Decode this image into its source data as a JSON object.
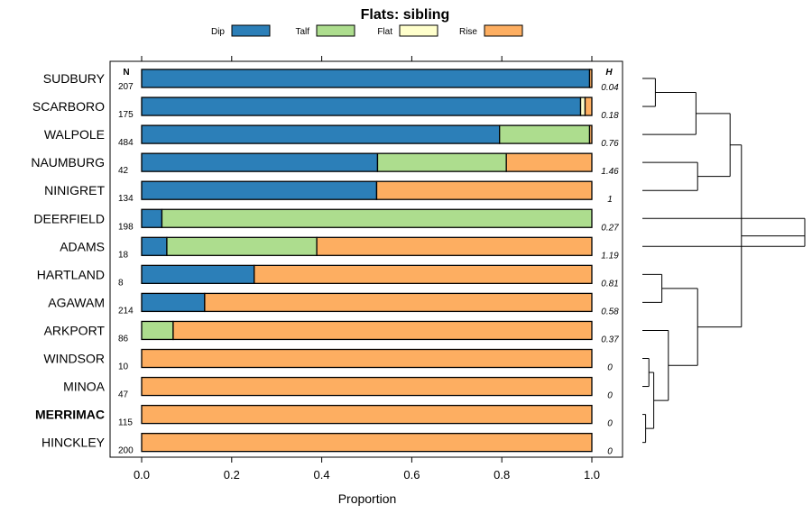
{
  "chart_data": {
    "type": "bar",
    "orientation": "horizontal",
    "stacked": true,
    "title": "Flats: sibling",
    "xlabel": "Proportion",
    "ylabel": "",
    "xlim": [
      0,
      1
    ],
    "xticks": [
      "0.0",
      "0.2",
      "0.4",
      "0.6",
      "0.8",
      "1.0"
    ],
    "n_header": "N",
    "h_header": "H",
    "legend_position": "top",
    "categories": [
      "SUDBURY",
      "SCARBORO",
      "WALPOLE",
      "NAUMBURG",
      "NINIGRET",
      "DEERFIELD",
      "ADAMS",
      "HARTLAND",
      "AGAWAM",
      "ARKPORT",
      "WINDSOR",
      "MINOA",
      "MERRIMAC",
      "HINCKLEY"
    ],
    "highlighted_category": "MERRIMAC",
    "n_values": [
      "207",
      "175",
      "484",
      "42",
      "134",
      "198",
      "18",
      "8",
      "214",
      "86",
      "10",
      "47",
      "115",
      "200"
    ],
    "h_values": [
      "0.04",
      "0.18",
      "0.76",
      "1.46",
      "1",
      "0.27",
      "1.19",
      "0.81",
      "0.58",
      "0.37",
      "0",
      "0",
      "0",
      "0"
    ],
    "series": [
      {
        "name": "Dip",
        "color": "#2c7fb8",
        "values": [
          0.995,
          0.975,
          0.795,
          0.524,
          0.522,
          0.045,
          0.056,
          0.25,
          0.14,
          0.0,
          0,
          0,
          0,
          0
        ]
      },
      {
        "name": "Talf",
        "color": "#addd8e",
        "values": [
          0.0,
          0.0,
          0.2,
          0.286,
          0.0,
          0.955,
          0.333,
          0.0,
          0.0,
          0.07,
          0,
          0,
          0,
          0
        ]
      },
      {
        "name": "Flat",
        "color": "#ffffcc",
        "values": [
          0.0,
          0.01,
          0.0,
          0.0,
          0.0,
          0.0,
          0.0,
          0.0,
          0.0,
          0.0,
          0,
          0,
          0,
          0
        ]
      },
      {
        "name": "Rise",
        "color": "#fdae61",
        "values": [
          0.005,
          0.015,
          0.005,
          0.19,
          0.478,
          0.0,
          0.611,
          0.75,
          0.86,
          0.93,
          1,
          1,
          1,
          1
        ]
      }
    ],
    "dendrogram_merges": [
      [
        0,
        1
      ],
      [
        14,
        2
      ],
      [
        3,
        4
      ],
      [
        15,
        16
      ],
      [
        7,
        8
      ],
      [
        10,
        11
      ],
      [
        12,
        13
      ],
      [
        19,
        20
      ],
      [
        9,
        21
      ],
      [
        18,
        22
      ],
      [
        17,
        23
      ],
      [
        5,
        24
      ],
      [
        6,
        25
      ]
    ],
    "dendrogram_heights": [
      0.08,
      0.33,
      0.34,
      0.54,
      0.12,
      0.04,
      0.02,
      0.07,
      0.16,
      0.34,
      0.61,
      1.0,
      1.0
    ]
  }
}
